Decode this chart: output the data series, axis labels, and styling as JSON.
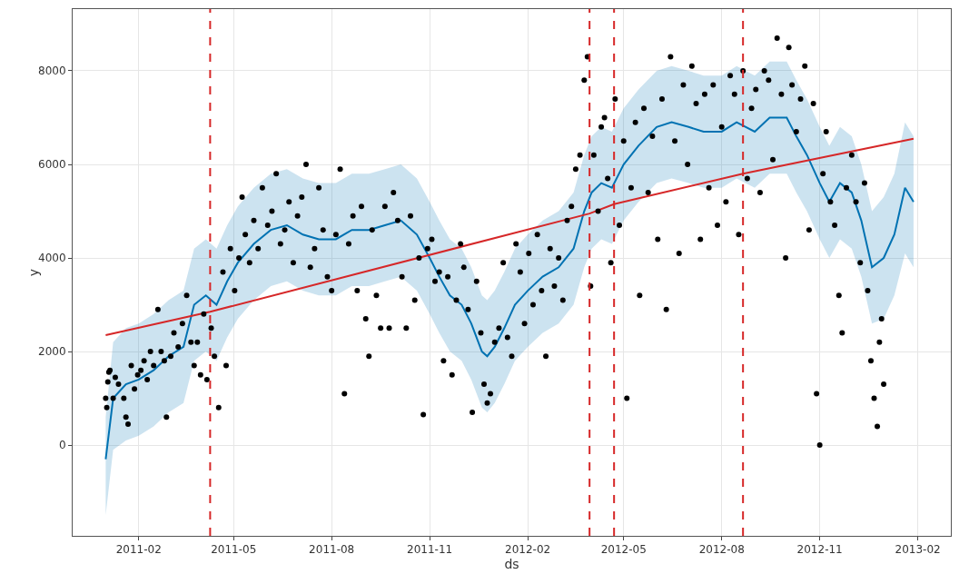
{
  "chart_data": {
    "type": "line",
    "xlabel": "ds",
    "ylabel": "y",
    "grid": true,
    "xlim": [
      "2010-12-01",
      "2013-03-04"
    ],
    "ylim": [
      -1940,
      9320
    ],
    "xticks": [
      "2011-02",
      "2011-05",
      "2011-08",
      "2011-11",
      "2012-02",
      "2012-05",
      "2012-08",
      "2012-11",
      "2013-02"
    ],
    "yticks": [
      0,
      2000,
      4000,
      6000,
      8000
    ],
    "series": [
      {
        "color": "#0072b2",
        "marker": "none",
        "line_style": "solid",
        "x": [
          "2011-01-01",
          "2011-01-08",
          "2011-01-20",
          "2011-02-01",
          "2011-02-15",
          "2011-03-01",
          "2011-03-15",
          "2011-03-25",
          "2011-04-05",
          "2011-04-15",
          "2011-04-25",
          "2011-05-05",
          "2011-05-20",
          "2011-06-05",
          "2011-06-20",
          "2011-07-05",
          "2011-07-20",
          "2011-08-05",
          "2011-08-20",
          "2011-09-05",
          "2011-09-20",
          "2011-10-05",
          "2011-10-20",
          "2011-11-01",
          "2011-11-10",
          "2011-11-20",
          "2011-12-01",
          "2011-12-10",
          "2011-12-20",
          "2011-12-25",
          "2012-01-01",
          "2012-01-10",
          "2012-01-20",
          "2012-02-01",
          "2012-02-15",
          "2012-03-01",
          "2012-03-15",
          "2012-03-25",
          "2012-04-01",
          "2012-04-10",
          "2012-04-20",
          "2012-05-01",
          "2012-05-15",
          "2012-06-01",
          "2012-06-15",
          "2012-07-01",
          "2012-07-15",
          "2012-08-01",
          "2012-08-15",
          "2012-09-01",
          "2012-09-15",
          "2012-10-01",
          "2012-10-10",
          "2012-10-20",
          "2012-11-01",
          "2012-11-10",
          "2012-11-20",
          "2012-12-01",
          "2012-12-10",
          "2012-12-20",
          "2012-12-31",
          "2013-01-10",
          "2013-01-20",
          "2013-01-28"
        ],
        "values": [
          -300,
          1000,
          1300,
          1400,
          1600,
          1900,
          2100,
          3000,
          3200,
          3000,
          3500,
          3900,
          4300,
          4600,
          4700,
          4500,
          4400,
          4400,
          4600,
          4600,
          4700,
          4800,
          4500,
          4000,
          3600,
          3200,
          3000,
          2600,
          2000,
          1900,
          2100,
          2500,
          3000,
          3300,
          3600,
          3800,
          4200,
          5000,
          5400,
          5600,
          5500,
          6000,
          6400,
          6800,
          6900,
          6800,
          6700,
          6700,
          6900,
          6700,
          7000,
          7000,
          6600,
          6200,
          5600,
          5200,
          5600,
          5400,
          4800,
          3800,
          4000,
          4500,
          5500,
          5200
        ],
        "lower": [
          -1500,
          -100,
          100,
          200,
          400,
          700,
          900,
          1800,
          2000,
          1800,
          2300,
          2700,
          3100,
          3400,
          3500,
          3300,
          3200,
          3200,
          3400,
          3400,
          3500,
          3600,
          3300,
          2800,
          2400,
          2000,
          1800,
          1400,
          800,
          700,
          900,
          1300,
          1800,
          2100,
          2400,
          2600,
          3000,
          3800,
          4200,
          4400,
          4300,
          4800,
          5200,
          5600,
          5700,
          5600,
          5500,
          5500,
          5700,
          5500,
          5800,
          5800,
          5400,
          5000,
          4400,
          4000,
          4400,
          4200,
          3600,
          2600,
          2700,
          3200,
          4100,
          3800
        ],
        "upper": [
          600,
          2200,
          2500,
          2600,
          2800,
          3100,
          3300,
          4200,
          4400,
          4200,
          4700,
          5100,
          5500,
          5800,
          5900,
          5700,
          5600,
          5600,
          5800,
          5800,
          5900,
          6000,
          5700,
          5200,
          4800,
          4400,
          4200,
          3800,
          3200,
          3100,
          3300,
          3700,
          4200,
          4500,
          4800,
          5000,
          5400,
          6200,
          6600,
          6800,
          6700,
          7200,
          7600,
          8000,
          8100,
          8000,
          7900,
          7900,
          8100,
          7900,
          8200,
          8200,
          7800,
          7400,
          6800,
          6400,
          6800,
          6600,
          6000,
          5000,
          5300,
          5800,
          6900,
          6600
        ]
      },
      {
        "type": "line",
        "color": "#d62728",
        "marker": "none",
        "line_style": "solid",
        "x": [
          "2011-01-01",
          "2011-04-09",
          "2012-03-30",
          "2012-04-22",
          "2012-08-21",
          "2013-01-28"
        ],
        "values": [
          2350,
          2850,
          4950,
          5150,
          5800,
          6550
        ]
      },
      {
        "type": "scatter",
        "color": "#000000",
        "marker": "circle",
        "x": [
          "2011-01-01",
          "2011-01-02",
          "2011-01-03",
          "2011-01-04",
          "2011-01-05",
          "2011-01-08",
          "2011-01-10",
          "2011-01-13",
          "2011-01-18",
          "2011-01-20",
          "2011-01-22",
          "2011-01-25",
          "2011-01-28",
          "2011-01-31",
          "2011-02-03",
          "2011-02-06",
          "2011-02-09",
          "2011-02-12",
          "2011-02-15",
          "2011-02-19",
          "2011-02-22",
          "2011-02-25",
          "2011-02-27",
          "2011-03-03",
          "2011-03-06",
          "2011-03-10",
          "2011-03-14",
          "2011-03-18",
          "2011-03-22",
          "2011-03-25",
          "2011-03-28",
          "2011-03-31",
          "2011-04-03",
          "2011-04-06",
          "2011-04-10",
          "2011-04-13",
          "2011-04-17",
          "2011-04-21",
          "2011-04-24",
          "2011-04-28",
          "2011-05-02",
          "2011-05-06",
          "2011-05-09",
          "2011-05-12",
          "2011-05-16",
          "2011-05-20",
          "2011-05-24",
          "2011-05-28",
          "2011-06-02",
          "2011-06-06",
          "2011-06-10",
          "2011-06-14",
          "2011-06-18",
          "2011-06-22",
          "2011-06-26",
          "2011-06-30",
          "2011-07-04",
          "2011-07-08",
          "2011-07-12",
          "2011-07-16",
          "2011-07-20",
          "2011-07-24",
          "2011-07-28",
          "2011-08-01",
          "2011-08-05",
          "2011-08-09",
          "2011-08-13",
          "2011-08-17",
          "2011-08-21",
          "2011-08-25",
          "2011-08-29",
          "2011-09-02",
          "2011-09-05",
          "2011-09-08",
          "2011-09-12",
          "2011-09-16",
          "2011-09-20",
          "2011-09-24",
          "2011-09-28",
          "2011-10-02",
          "2011-10-06",
          "2011-10-10",
          "2011-10-14",
          "2011-10-18",
          "2011-10-22",
          "2011-10-26",
          "2011-10-30",
          "2011-11-03",
          "2011-11-06",
          "2011-11-10",
          "2011-11-14",
          "2011-11-18",
          "2011-11-22",
          "2011-11-26",
          "2011-11-30",
          "2011-12-03",
          "2011-12-07",
          "2011-12-11",
          "2011-12-15",
          "2011-12-19",
          "2011-12-22",
          "2011-12-25",
          "2011-12-28",
          "2012-01-01",
          "2012-01-05",
          "2012-01-09",
          "2012-01-13",
          "2012-01-17",
          "2012-01-21",
          "2012-01-25",
          "2012-01-29",
          "2012-02-02",
          "2012-02-06",
          "2012-02-10",
          "2012-02-14",
          "2012-02-18",
          "2012-02-22",
          "2012-02-26",
          "2012-03-01",
          "2012-03-05",
          "2012-03-09",
          "2012-03-13",
          "2012-03-17",
          "2012-03-21",
          "2012-03-25",
          "2012-03-28",
          "2012-03-31",
          "2012-04-03",
          "2012-04-07",
          "2012-04-10",
          "2012-04-13",
          "2012-04-16",
          "2012-04-19",
          "2012-04-23",
          "2012-04-27",
          "2012-05-01",
          "2012-05-04",
          "2012-05-08",
          "2012-05-12",
          "2012-05-16",
          "2012-05-20",
          "2012-05-24",
          "2012-05-28",
          "2012-06-02",
          "2012-06-06",
          "2012-06-10",
          "2012-06-14",
          "2012-06-18",
          "2012-06-22",
          "2012-06-26",
          "2012-06-30",
          "2012-07-04",
          "2012-07-08",
          "2012-07-12",
          "2012-07-16",
          "2012-07-20",
          "2012-07-24",
          "2012-07-28",
          "2012-08-01",
          "2012-08-05",
          "2012-08-09",
          "2012-08-13",
          "2012-08-17",
          "2012-08-21",
          "2012-08-25",
          "2012-08-29",
          "2012-09-02",
          "2012-09-06",
          "2012-09-10",
          "2012-09-14",
          "2012-09-18",
          "2012-09-22",
          "2012-09-26",
          "2012-09-30",
          "2012-10-03",
          "2012-10-06",
          "2012-10-10",
          "2012-10-14",
          "2012-10-18",
          "2012-10-22",
          "2012-10-26",
          "2012-10-29",
          "2012-11-01",
          "2012-11-04",
          "2012-11-07",
          "2012-11-11",
          "2012-11-15",
          "2012-11-19",
          "2012-11-22",
          "2012-11-26",
          "2012-12-01",
          "2012-12-05",
          "2012-12-09",
          "2012-12-13",
          "2012-12-16",
          "2012-12-19",
          "2012-12-22",
          "2012-12-25",
          "2012-12-27",
          "2012-12-29",
          "2012-12-31"
        ],
        "values": [
          1000,
          800,
          1350,
          1560,
          1600,
          1000,
          1450,
          1300,
          1000,
          600,
          450,
          1700,
          1200,
          1500,
          1600,
          1800,
          1400,
          2000,
          1700,
          2900,
          2000,
          1800,
          600,
          1900,
          2400,
          2100,
          2600,
          3200,
          2200,
          1700,
          2200,
          1500,
          2800,
          1400,
          2500,
          1900,
          800,
          3700,
          1700,
          4200,
          3300,
          4000,
          5300,
          4500,
          3900,
          4800,
          4200,
          5500,
          4700,
          5000,
          5800,
          4300,
          4600,
          5200,
          3900,
          4900,
          5300,
          6000,
          3800,
          4200,
          5500,
          4600,
          3600,
          3300,
          4500,
          5900,
          1100,
          4300,
          4900,
          3300,
          5100,
          2700,
          1900,
          4600,
          3200,
          2500,
          5100,
          2500,
          5400,
          4800,
          3600,
          2500,
          4900,
          3100,
          4000,
          650,
          4200,
          4400,
          3500,
          3700,
          1800,
          3600,
          1500,
          3100,
          4300,
          3800,
          2900,
          700,
          3500,
          2400,
          1300,
          900,
          1100,
          2200,
          2500,
          3900,
          2300,
          1900,
          4300,
          3700,
          2600,
          4100,
          3000,
          4500,
          3300,
          1900,
          4200,
          3400,
          4000,
          3100,
          4800,
          5100,
          5900,
          6200,
          7800,
          8300,
          3400,
          6200,
          5000,
          6800,
          7000,
          5700,
          3900,
          7400,
          4700,
          6500,
          1000,
          5500,
          6900,
          3200,
          7200,
          5400,
          6600,
          4400,
          7400,
          2900,
          8300,
          6500,
          4100,
          7700,
          6000,
          8100,
          7300,
          4400,
          7500,
          5500,
          7700,
          4700,
          6800,
          5200,
          7900,
          7500,
          4500,
          8000,
          5700,
          7200,
          7600,
          5400,
          8000,
          7800,
          6100,
          8700,
          7500,
          4000,
          8500,
          7700,
          6700,
          7400,
          8100,
          4600,
          7300,
          1100,
          0,
          5800,
          6700,
          5200,
          4700,
          3200,
          2400,
          5500,
          6200,
          5200,
          3900,
          5600,
          3300,
          1800,
          1000,
          400,
          2200,
          2700,
          1300
        ]
      }
    ],
    "ref_lines": [
      {
        "axis": "x",
        "value": "2011-04-09",
        "color": "#d62728",
        "line_style": "dashed"
      },
      {
        "axis": "x",
        "value": "2012-03-30",
        "color": "#d62728",
        "line_style": "dashed"
      },
      {
        "axis": "x",
        "value": "2012-04-22",
        "color": "#d62728",
        "line_style": "dashed"
      },
      {
        "axis": "x",
        "value": "2012-08-21",
        "color": "#d62728",
        "line_style": "dashed"
      }
    ]
  }
}
